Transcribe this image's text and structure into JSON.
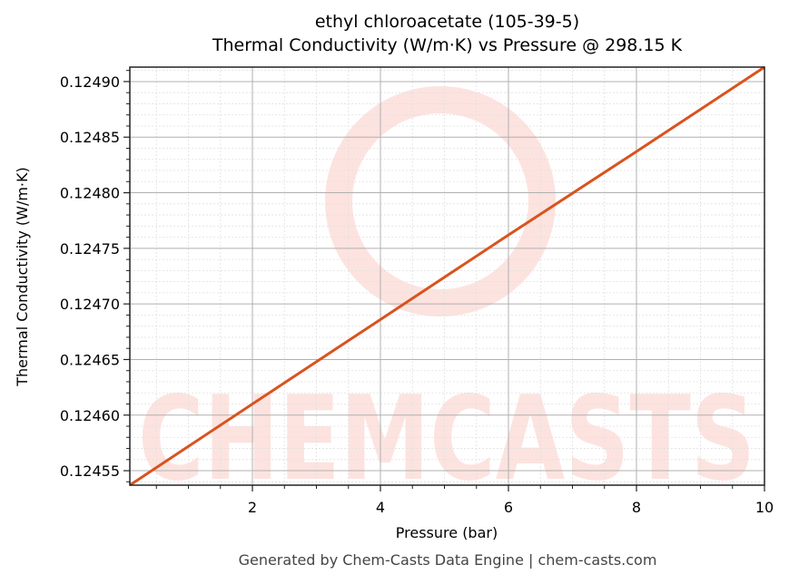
{
  "chart_data": {
    "type": "line",
    "title": "ethyl chloroacetate (105-39-5)",
    "subtitle": "Thermal Conductivity (W/m·K) vs Pressure @ 298.15 K",
    "xlabel": "Pressure (bar)",
    "ylabel": "Thermal Conductivity (W/m·K)",
    "xlim": [
      0.085,
      10
    ],
    "ylim": [
      0.124537,
      0.124913
    ],
    "x_ticks": [
      "2",
      "4",
      "6",
      "8",
      "10"
    ],
    "y_ticks": [
      "0.12455",
      "0.12460",
      "0.12465",
      "0.12470",
      "0.12475",
      "0.12480",
      "0.12485",
      "0.12490"
    ],
    "grid": true,
    "legend": null,
    "series": [
      {
        "name": "Thermal Conductivity",
        "color": "#d9531e",
        "x": [
          0.085,
          2,
          4,
          6,
          8,
          10
        ],
        "y": [
          0.124537,
          0.12461,
          0.124686,
          0.124762,
          0.124837,
          0.124913
        ]
      }
    ]
  },
  "watermark": {
    "text": "CHEMCASTS",
    "color": "#fde3df"
  },
  "footer": "Generated by Chem-Casts Data Engine | chem-casts.com",
  "colors": {
    "line": "#d9531e",
    "grid_major": "#b0b0b0",
    "grid_minor": "#e0e0e0",
    "footer": "#444444"
  }
}
